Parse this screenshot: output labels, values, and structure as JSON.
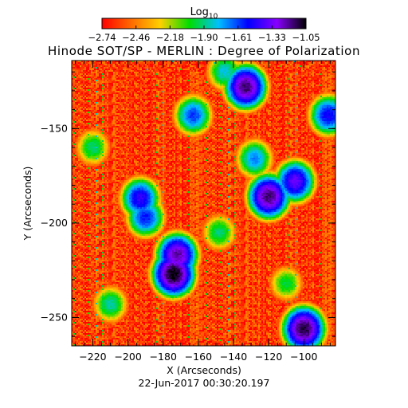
{
  "chart_data": {
    "type": "heatmap",
    "title": "Hinode SOT/SP - MERLIN : Degree of Polarization",
    "xlabel": "X (Arcseconds)",
    "ylabel": "Y (Arcseconds)",
    "footer": "22-Jun-2017 00:30:20.197",
    "xlim": [
      -232,
      -82
    ],
    "ylim": [
      -265,
      -114
    ],
    "x_ticks": [
      -220,
      -200,
      -180,
      -160,
      -140,
      -120,
      -100
    ],
    "y_ticks": [
      -150,
      -200,
      -250
    ],
    "colorbar": {
      "title_base": "Log",
      "title_sub": "10",
      "range": [
        -2.74,
        -1.05
      ],
      "tick_labels": [
        "-2.74",
        "-2.46",
        "-2.18",
        "-1.90",
        "-1.61",
        "-1.33",
        "-1.05"
      ],
      "colors": [
        "#ff0000",
        "#ff6a00",
        "#ffd000",
        "#00dd00",
        "#00c0ff",
        "#0000ff",
        "#8800ff",
        "#000000"
      ]
    },
    "background_level": -2.6,
    "features": [
      {
        "x": -174,
        "y": -227,
        "level": -1.05
      },
      {
        "x": -172,
        "y": -217,
        "level": -1.2
      },
      {
        "x": -133,
        "y": -128,
        "level": -1.15
      },
      {
        "x": -120,
        "y": -186,
        "level": -1.15
      },
      {
        "x": -100,
        "y": -256,
        "level": -1.1
      },
      {
        "x": -105,
        "y": -178,
        "level": -1.35
      },
      {
        "x": -193,
        "y": -187,
        "level": -1.45
      },
      {
        "x": -163,
        "y": -143,
        "level": -1.6
      },
      {
        "x": -86,
        "y": -143,
        "level": -1.5
      },
      {
        "x": -128,
        "y": -166,
        "level": -1.7
      },
      {
        "x": -190,
        "y": -197,
        "level": -1.55
      },
      {
        "x": -148,
        "y": -205,
        "level": -1.9
      },
      {
        "x": -220,
        "y": -160,
        "level": -1.9
      },
      {
        "x": -210,
        "y": -243,
        "level": -1.85
      },
      {
        "x": -145,
        "y": -120,
        "level": -1.8
      },
      {
        "x": -110,
        "y": -232,
        "level": -1.95
      }
    ]
  }
}
